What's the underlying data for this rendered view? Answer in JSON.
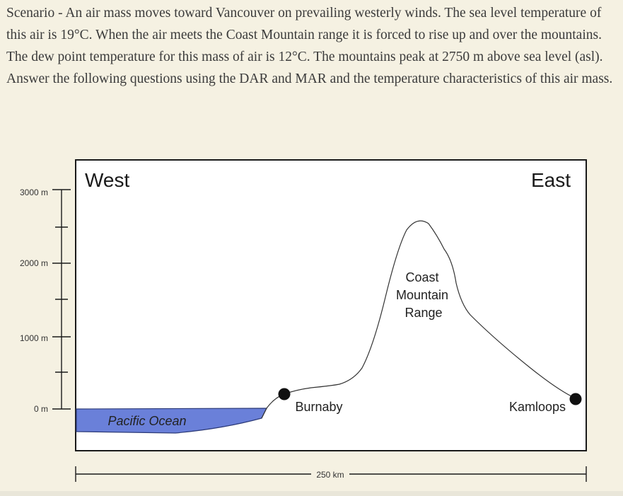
{
  "scenario_text": "Scenario - An air mass moves toward Vancouver on prevailing westerly winds. The sea level temperature of this air is 19°C. When the air meets the Coast Mountain range it is forced to rise up and over the mountains. The dew point temperature for this mass of air is 12°C. The mountains peak at 2750 m above sea level (asl). Answer the following questions using the DAR and MAR and the temperature characteristics of this air mass.",
  "diagram": {
    "west_label": "West",
    "east_label": "East",
    "ocean_label": "Pacific Ocean",
    "mountain_label": [
      "Coast",
      "Mountain",
      "Range"
    ],
    "burnaby_label": "Burnaby",
    "kamloops_label": "Kamloops",
    "altitude_ticks": [
      "3000 m",
      "2000 m",
      "1000 m",
      "0 m"
    ],
    "distance_label": "250 km",
    "colors": {
      "ocean": "#6a80d9",
      "frame": "#1a1a1a",
      "background": "#f5f1e2",
      "panel": "#ffffff"
    }
  }
}
